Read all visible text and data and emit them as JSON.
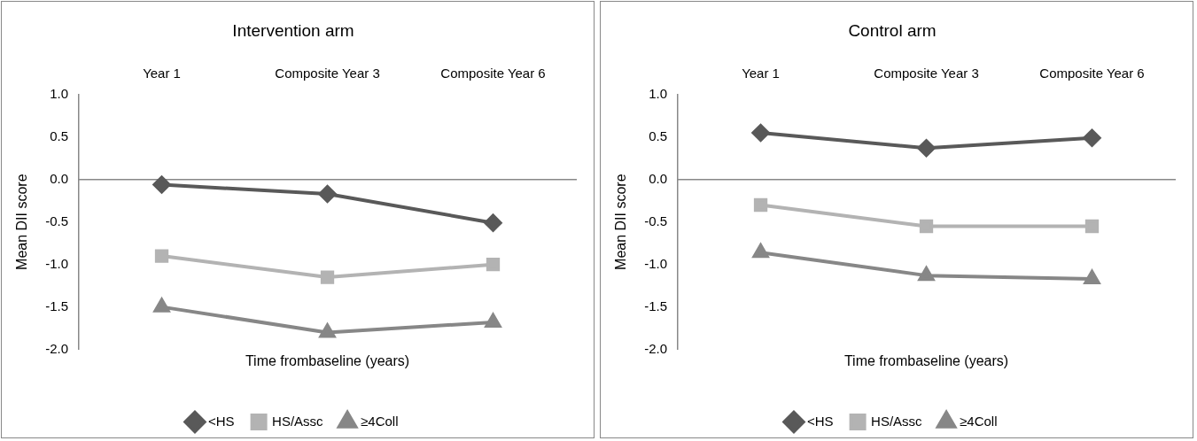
{
  "chart_data": [
    {
      "type": "line",
      "title": "Intervention arm",
      "xlabel": "Time frombaseline (years)",
      "ylabel": "Mean DII score",
      "categories": [
        "Year 1",
        "Composite Year 3",
        "Composite Year 6"
      ],
      "ylim": [
        -2,
        1
      ],
      "yticks": [
        {
          "value": -2,
          "label": "-2.0"
        },
        {
          "value": -1.5,
          "label": "-1.5"
        },
        {
          "value": -1,
          "label": "-1.0"
        },
        {
          "value": -0.5,
          "label": "-0.5"
        },
        {
          "value": 0,
          "label": "0.0"
        },
        {
          "value": 0.5,
          "label": "0.5"
        },
        {
          "value": 1,
          "label": "1.0"
        }
      ],
      "legend": "bottom",
      "line_style": "solid",
      "series": [
        {
          "name": "<HS",
          "color": "#595959",
          "marker": "diamond",
          "values": [
            -0.06,
            -0.17,
            -0.51
          ]
        },
        {
          "name": "HS/Assc",
          "color": "#b3b3b3",
          "marker": "square",
          "values": [
            -0.9,
            -1.15,
            -1.0
          ]
        },
        {
          "name": "≥4Coll",
          "color": "#878787",
          "marker": "triangle",
          "values": [
            -1.5,
            -1.8,
            -1.68
          ]
        }
      ]
    },
    {
      "type": "line",
      "title": "Control arm",
      "xlabel": "Time frombaseline (years)",
      "ylabel": "Mean DII score",
      "categories": [
        "Year 1",
        "Composite Year 3",
        "Composite Year 6"
      ],
      "ylim": [
        -2,
        1
      ],
      "yticks": [
        {
          "value": -2,
          "label": "-2.0"
        },
        {
          "value": -1.5,
          "label": "-1.5"
        },
        {
          "value": -1,
          "label": "-1.0"
        },
        {
          "value": -0.5,
          "label": "-0.5"
        },
        {
          "value": 0,
          "label": "0.0"
        },
        {
          "value": 0.5,
          "label": "0.5"
        },
        {
          "value": 1,
          "label": "1.0"
        }
      ],
      "legend": "bottom",
      "line_style": "solid",
      "series": [
        {
          "name": "<HS",
          "color": "#595959",
          "marker": "diamond",
          "values": [
            0.55,
            0.37,
            0.49
          ]
        },
        {
          "name": "HS/Assc",
          "color": "#b3b3b3",
          "marker": "square",
          "values": [
            -0.3,
            -0.55,
            -0.55
          ]
        },
        {
          "name": "≥4Coll",
          "color": "#878787",
          "marker": "triangle",
          "values": [
            -0.86,
            -1.13,
            -1.17
          ]
        }
      ]
    }
  ]
}
